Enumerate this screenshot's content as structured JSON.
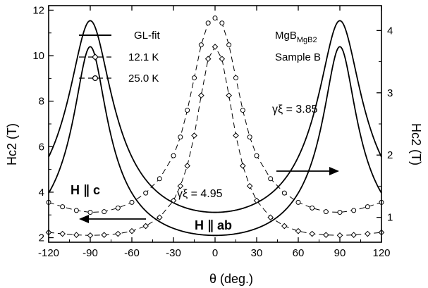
{
  "chart_data": {
    "type": "line",
    "title": "",
    "xlabel": "θ (deg.)",
    "ylabel_left": "Hc2 (T)",
    "ylabel_right": "Hc2 (T)",
    "xlim": [
      -120,
      120
    ],
    "ylim_left": [
      1.8,
      12.2
    ],
    "ylim_right": [
      0.6,
      4.4
    ],
    "x_ticks": [
      "-120",
      "-90",
      "-60",
      "-30",
      "0",
      "30",
      "60",
      "90",
      "120"
    ],
    "y_ticks_left": [
      "2",
      "4",
      "6",
      "8",
      "10",
      "12"
    ],
    "y_ticks_right": [
      "1",
      "2",
      "3",
      "4"
    ],
    "grid": false,
    "legend_position": "top-left",
    "legend": [
      {
        "label": "GL-fit",
        "style": "solid"
      },
      {
        "label": "12.1 K",
        "style": "dashed-diamond"
      },
      {
        "label": "25.0 K",
        "style": "dashed-circle"
      }
    ],
    "sample_text": [
      "MgB2",
      "Sample B"
    ],
    "annotations": {
      "gamma_upper": "γξ = 3.85",
      "gamma_lower": "γξ = 4.95",
      "h_par_c": "H ∥ c",
      "h_par_ab": "H ∥ ab"
    },
    "series": [
      {
        "name": "12.1 K",
        "axis": "left",
        "gamma": 4.95,
        "hc2_c": 2.1,
        "x": [
          -120,
          -110,
          -100,
          -90,
          -80,
          -70,
          -60,
          -50,
          -40,
          -30,
          -25,
          -20,
          -15,
          -10,
          -5,
          0,
          5,
          10,
          15,
          20,
          25,
          30,
          40,
          50,
          60,
          70,
          80,
          90,
          100,
          110,
          120
        ],
        "y": [
          2.23,
          2.17,
          2.12,
          2.1,
          2.12,
          2.17,
          2.29,
          2.51,
          2.89,
          3.63,
          4.27,
          5.16,
          6.49,
          8.25,
          9.86,
          10.39,
          9.86,
          8.25,
          6.49,
          5.16,
          4.27,
          3.63,
          2.89,
          2.51,
          2.29,
          2.17,
          2.12,
          2.1,
          2.12,
          2.17,
          2.23
        ]
      },
      {
        "name": "25.0 K",
        "axis": "right",
        "gamma": 3.85,
        "hc2_c": 1.08,
        "x": [
          -120,
          -110,
          -100,
          -90,
          -80,
          -70,
          -60,
          -50,
          -40,
          -30,
          -25,
          -20,
          -15,
          -10,
          -5,
          0,
          5,
          10,
          15,
          20,
          25,
          30,
          40,
          50,
          60,
          70,
          80,
          90,
          100,
          110,
          120
        ],
        "y": [
          1.24,
          1.17,
          1.11,
          1.08,
          1.09,
          1.15,
          1.24,
          1.39,
          1.62,
          1.99,
          2.29,
          2.72,
          3.24,
          3.77,
          4.12,
          4.2,
          4.12,
          3.77,
          3.24,
          2.72,
          2.29,
          1.99,
          1.62,
          1.39,
          1.24,
          1.15,
          1.09,
          1.08,
          1.11,
          1.17,
          1.24
        ]
      }
    ]
  }
}
